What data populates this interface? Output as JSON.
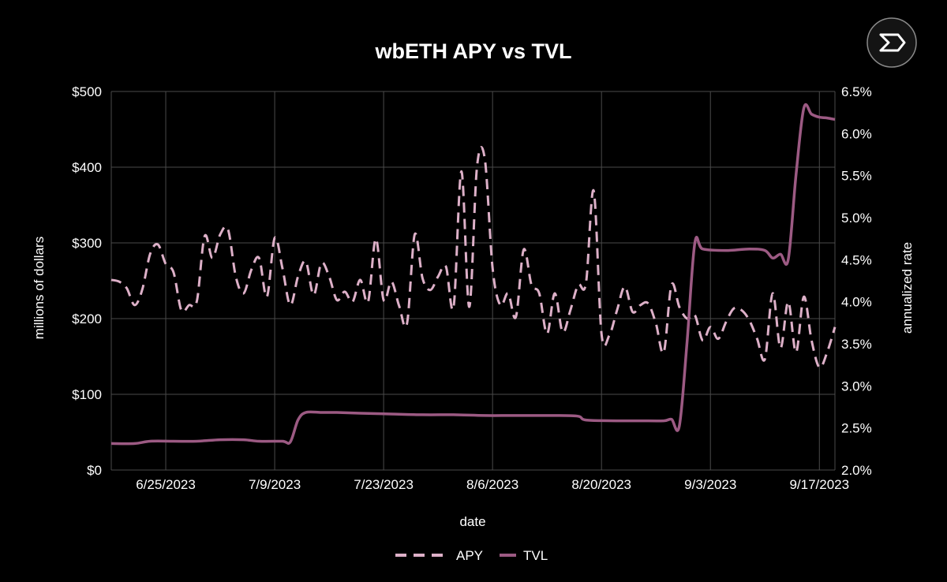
{
  "logo": {
    "icon": "exponential-logo-icon"
  },
  "colors": {
    "background": "#000000",
    "grid": "#4a4a4a",
    "apy": "#ddb0c8",
    "tvl": "#9c5a83",
    "text": "#ffffff"
  },
  "chart_data": {
    "type": "line",
    "title": "wbETH APY vs TVL",
    "xlabel": "date",
    "ylabel_left": "millions of dollars",
    "ylabel_right": "annualized rate",
    "x_range": [
      "2023-06-18",
      "2023-09-19"
    ],
    "x_ticks": [
      {
        "date": "2023-06-25",
        "label": "6/25/2023"
      },
      {
        "date": "2023-07-09",
        "label": "7/9/2023"
      },
      {
        "date": "2023-07-23",
        "label": "7/23/2023"
      },
      {
        "date": "2023-08-06",
        "label": "8/6/2023"
      },
      {
        "date": "2023-08-20",
        "label": "8/20/2023"
      },
      {
        "date": "2023-09-03",
        "label": "9/3/2023"
      },
      {
        "date": "2023-09-17",
        "label": "9/17/2023"
      }
    ],
    "y_left": {
      "min": 0,
      "max": 500,
      "ticks": [
        0,
        100,
        200,
        300,
        400,
        500
      ],
      "tick_labels": [
        "$0",
        "$100",
        "$200",
        "$300",
        "$400",
        "$500"
      ]
    },
    "y_right": {
      "min": 2.0,
      "max": 6.5,
      "ticks": [
        2.0,
        2.5,
        3.0,
        3.5,
        4.0,
        4.5,
        5.0,
        5.5,
        6.0,
        6.5
      ],
      "tick_labels": [
        "2.0%",
        "2.5%",
        "3.0%",
        "3.5%",
        "4.0%",
        "4.5%",
        "5.0%",
        "5.5%",
        "6.0%",
        "6.5%"
      ]
    },
    "grid": true,
    "legend": {
      "position": "bottom-center"
    },
    "series": [
      {
        "name": "APY",
        "axis": "right",
        "style": "dashed",
        "color": "#ddb0c8",
        "points": [
          [
            "2023-06-18",
            4.26
          ],
          [
            "2023-06-19",
            4.24
          ],
          [
            "2023-06-20",
            4.16
          ],
          [
            "2023-06-21",
            3.96
          ],
          [
            "2023-06-22",
            4.15
          ],
          [
            "2023-06-23",
            4.57
          ],
          [
            "2023-06-24",
            4.68
          ],
          [
            "2023-06-25",
            4.45
          ],
          [
            "2023-06-26",
            4.35
          ],
          [
            "2023-06-27",
            3.9
          ],
          [
            "2023-06-28",
            3.96
          ],
          [
            "2023-06-29",
            4.01
          ],
          [
            "2023-06-30",
            4.78
          ],
          [
            "2023-07-01",
            4.52
          ],
          [
            "2023-07-02",
            4.8
          ],
          [
            "2023-07-03",
            4.86
          ],
          [
            "2023-07-04",
            4.3
          ],
          [
            "2023-07-05",
            4.1
          ],
          [
            "2023-07-06",
            4.38
          ],
          [
            "2023-07-07",
            4.52
          ],
          [
            "2023-07-08",
            4.06
          ],
          [
            "2023-07-09",
            4.76
          ],
          [
            "2023-07-10",
            4.4
          ],
          [
            "2023-07-11",
            3.96
          ],
          [
            "2023-07-12",
            4.3
          ],
          [
            "2023-07-13",
            4.48
          ],
          [
            "2023-07-14",
            4.08
          ],
          [
            "2023-07-15",
            4.46
          ],
          [
            "2023-07-16",
            4.3
          ],
          [
            "2023-07-17",
            4.02
          ],
          [
            "2023-07-18",
            4.12
          ],
          [
            "2023-07-19",
            4.0
          ],
          [
            "2023-07-20",
            4.26
          ],
          [
            "2023-07-21",
            4.0
          ],
          [
            "2023-07-22",
            4.75
          ],
          [
            "2023-07-23",
            4.02
          ],
          [
            "2023-07-24",
            4.24
          ],
          [
            "2023-07-25",
            3.95
          ],
          [
            "2023-07-26",
            3.74
          ],
          [
            "2023-07-27",
            4.8
          ],
          [
            "2023-07-28",
            4.28
          ],
          [
            "2023-07-29",
            4.14
          ],
          [
            "2023-07-30",
            4.3
          ],
          [
            "2023-07-31",
            4.42
          ],
          [
            "2023-08-01",
            3.94
          ],
          [
            "2023-08-02",
            5.55
          ],
          [
            "2023-08-03",
            3.94
          ],
          [
            "2023-08-04",
            5.6
          ],
          [
            "2023-08-05",
            5.7
          ],
          [
            "2023-08-06",
            4.4
          ],
          [
            "2023-08-07",
            3.96
          ],
          [
            "2023-08-08",
            4.1
          ],
          [
            "2023-08-09",
            3.82
          ],
          [
            "2023-08-10",
            4.62
          ],
          [
            "2023-08-11",
            4.2
          ],
          [
            "2023-08-12",
            4.1
          ],
          [
            "2023-08-13",
            3.62
          ],
          [
            "2023-08-14",
            4.1
          ],
          [
            "2023-08-15",
            3.64
          ],
          [
            "2023-08-16",
            3.9
          ],
          [
            "2023-08-17",
            4.2
          ],
          [
            "2023-08-18",
            4.22
          ],
          [
            "2023-08-19",
            5.32
          ],
          [
            "2023-08-20",
            3.62
          ],
          [
            "2023-08-21",
            3.6
          ],
          [
            "2023-08-22",
            3.9
          ],
          [
            "2023-08-23",
            4.18
          ],
          [
            "2023-08-24",
            3.88
          ],
          [
            "2023-08-25",
            3.96
          ],
          [
            "2023-08-26",
            3.98
          ],
          [
            "2023-08-27",
            3.74
          ],
          [
            "2023-08-28",
            3.4
          ],
          [
            "2023-08-29",
            4.2
          ],
          [
            "2023-08-30",
            3.94
          ],
          [
            "2023-08-31",
            3.8
          ],
          [
            "2023-09-01",
            3.84
          ],
          [
            "2023-09-02",
            3.54
          ],
          [
            "2023-09-03",
            3.7
          ],
          [
            "2023-09-04",
            3.56
          ],
          [
            "2023-09-05",
            3.76
          ],
          [
            "2023-09-06",
            3.92
          ],
          [
            "2023-09-07",
            3.9
          ],
          [
            "2023-09-08",
            3.78
          ],
          [
            "2023-09-09",
            3.56
          ],
          [
            "2023-09-10",
            3.32
          ],
          [
            "2023-09-11",
            4.1
          ],
          [
            "2023-09-12",
            3.45
          ],
          [
            "2023-09-13",
            4.0
          ],
          [
            "2023-09-14",
            3.4
          ],
          [
            "2023-09-15",
            4.06
          ],
          [
            "2023-09-16",
            3.54
          ],
          [
            "2023-09-17",
            3.22
          ],
          [
            "2023-09-18",
            3.4
          ],
          [
            "2023-09-19",
            3.7
          ]
        ]
      },
      {
        "name": "TVL",
        "axis": "left",
        "style": "solid",
        "color": "#9c5a83",
        "points": [
          [
            "2023-06-18",
            35
          ],
          [
            "2023-06-21",
            35
          ],
          [
            "2023-06-23",
            38
          ],
          [
            "2023-06-26",
            38
          ],
          [
            "2023-06-29",
            38
          ],
          [
            "2023-07-02",
            40
          ],
          [
            "2023-07-05",
            40
          ],
          [
            "2023-07-07",
            38
          ],
          [
            "2023-07-10",
            38
          ],
          [
            "2023-07-11",
            37
          ],
          [
            "2023-07-12",
            66
          ],
          [
            "2023-07-13",
            76
          ],
          [
            "2023-07-15",
            76
          ],
          [
            "2023-07-17",
            76
          ],
          [
            "2023-07-20",
            75
          ],
          [
            "2023-07-24",
            74
          ],
          [
            "2023-07-28",
            73
          ],
          [
            "2023-08-01",
            73
          ],
          [
            "2023-08-05",
            72
          ],
          [
            "2023-08-09",
            72
          ],
          [
            "2023-08-14",
            72
          ],
          [
            "2023-08-17",
            71
          ],
          [
            "2023-08-18",
            66
          ],
          [
            "2023-08-22",
            65
          ],
          [
            "2023-08-25",
            65
          ],
          [
            "2023-08-28",
            65
          ],
          [
            "2023-08-29",
            67
          ],
          [
            "2023-08-30",
            58
          ],
          [
            "2023-08-31",
            170
          ],
          [
            "2023-09-01",
            300
          ],
          [
            "2023-09-02",
            292
          ],
          [
            "2023-09-05",
            290
          ],
          [
            "2023-09-08",
            292
          ],
          [
            "2023-09-10",
            290
          ],
          [
            "2023-09-11",
            280
          ],
          [
            "2023-09-12",
            285
          ],
          [
            "2023-09-13",
            278
          ],
          [
            "2023-09-14",
            390
          ],
          [
            "2023-09-15",
            478
          ],
          [
            "2023-09-16",
            470
          ],
          [
            "2023-09-17",
            466
          ],
          [
            "2023-09-18",
            465
          ],
          [
            "2023-09-19",
            463
          ]
        ]
      }
    ]
  }
}
